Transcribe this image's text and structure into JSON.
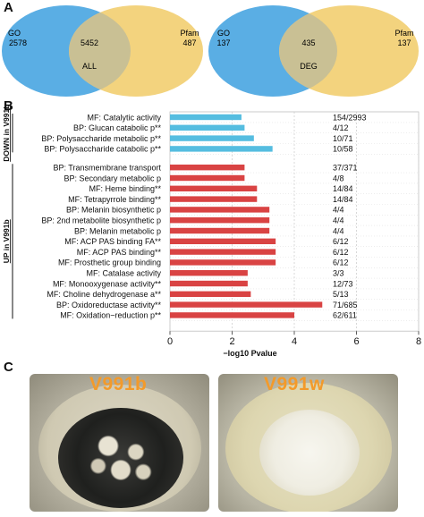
{
  "panel_a": {
    "letter": "A",
    "venns": [
      {
        "left_label": "GO",
        "left_value": "2578",
        "overlap_value": "5452",
        "right_label": "Pfam",
        "right_value": "487",
        "center_label": "ALL"
      },
      {
        "left_label": "GO",
        "left_value": "137",
        "overlap_value": "435",
        "right_label": "Pfam",
        "right_value": "137",
        "center_label": "DEG"
      }
    ]
  },
  "panel_b": {
    "letter": "B"
  },
  "panel_c": {
    "letter": "C",
    "photos": [
      {
        "label": "V991b"
      },
      {
        "label": "V991w"
      }
    ]
  },
  "colors": {
    "go_blue": "#5aaee4",
    "pfam_yellow": "#f3d37e",
    "overlap": "#c9c094",
    "down_bar": "#55bde0",
    "up_bar": "#d94343",
    "strain_label": "#f39a2a"
  },
  "chart_data": {
    "type": "bar",
    "orientation": "horizontal",
    "xlabel": "−log10 Pvalue",
    "xlim": [
      0,
      8
    ],
    "xticks": [
      0,
      2,
      4,
      6,
      8
    ],
    "grid": true,
    "groups": [
      {
        "name": "DOWN in V991b",
        "color": "#55bde0",
        "categories": [
          "MF: Catalytic activity",
          "BP: Glucan catabolic p**",
          "BP: Polysaccharide metabolic p**",
          "BP: Polysaccharide catabolic p**"
        ],
        "values": [
          2.3,
          2.4,
          2.7,
          3.3
        ],
        "ratios": [
          "154/2993",
          "4/12",
          "10/71",
          "10/58"
        ]
      },
      {
        "name": "UP in V991b",
        "color": "#d94343",
        "categories": [
          "BP: Transmembrane transport",
          "BP: Secondary metabolic p",
          "MF: Heme binding**",
          "MF: Tetrapyrrole binding**",
          "BP: Melanin biosynthetic p",
          "BP: 2nd metabolite biosynthetic p",
          "BP: Melanin metabolic p",
          "MF: ACP PAS binding FA**",
          "MF: ACP PAS binding**",
          "MF: Prosthetic group binding",
          "MF: Catalase activity",
          "MF: Monooxygenase activity**",
          "MF: Choline dehydrogenase a**",
          "BP: Oxidoreductase activity**",
          "MF: Oxidation−reduction p**"
        ],
        "values": [
          2.4,
          2.4,
          2.8,
          2.8,
          3.2,
          3.2,
          3.2,
          3.4,
          3.4,
          3.4,
          2.5,
          2.5,
          2.6,
          4.9,
          4.0
        ],
        "ratios": [
          "37/371",
          "4/8",
          "14/84",
          "14/84",
          "4/4",
          "4/4",
          "4/4",
          "6/12",
          "6/12",
          "6/12",
          "3/3",
          "12/73",
          "5/13",
          "71/685",
          "62/611"
        ]
      }
    ]
  }
}
